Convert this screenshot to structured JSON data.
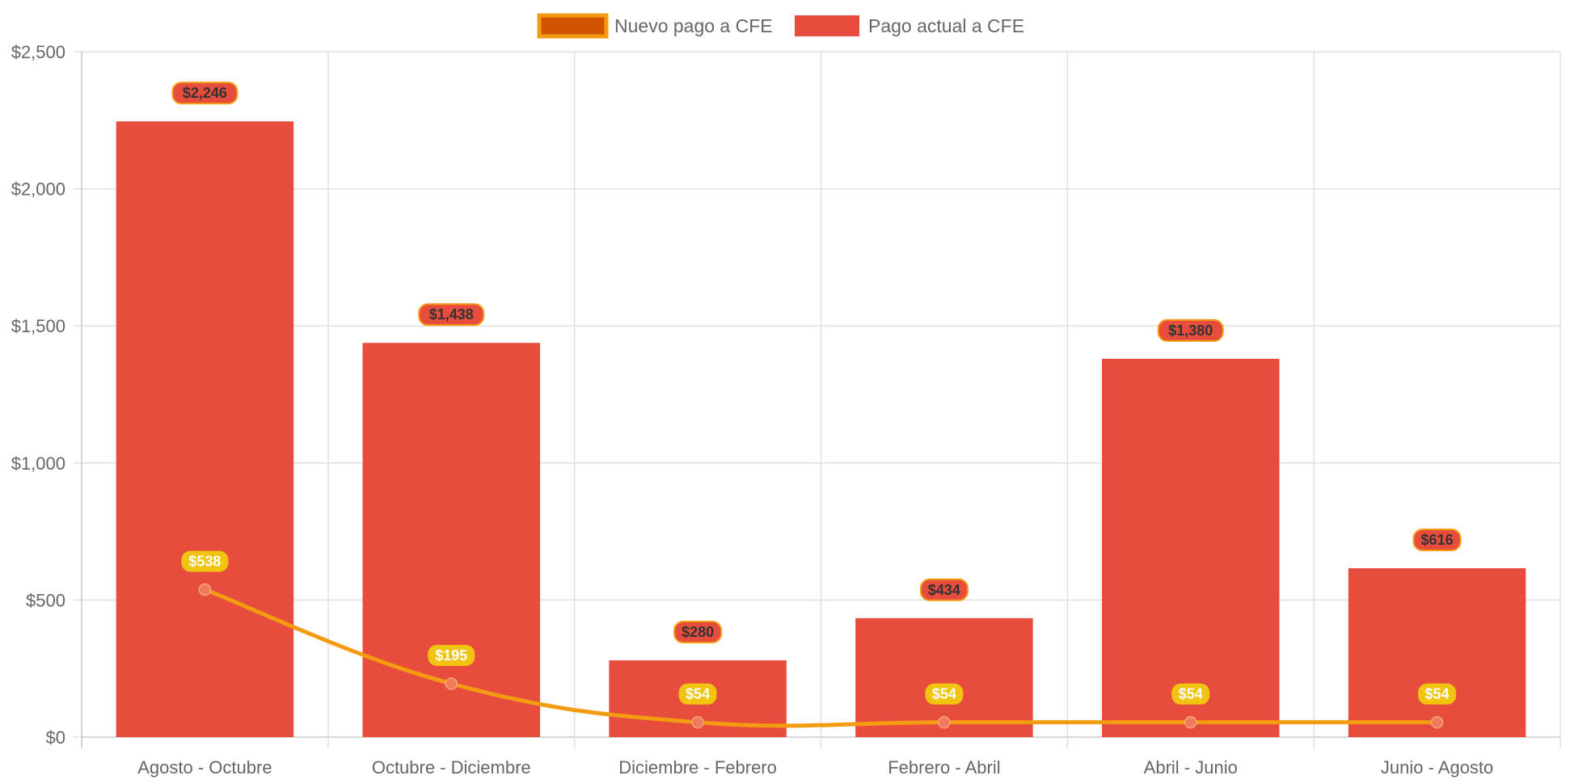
{
  "chart_data": {
    "type": "bar",
    "categories": [
      "Agosto - Octubre",
      "Octubre - Diciembre",
      "Diciembre - Febrero",
      "Febrero - Abril",
      "Abril - Junio",
      "Junio - Agosto"
    ],
    "series": [
      {
        "name": "Nuevo pago a CFE",
        "type": "line",
        "values": [
          538,
          195,
          54,
          54,
          54,
          54
        ],
        "labels": [
          "$538",
          "$195",
          "$54",
          "$54",
          "$54",
          "$54"
        ],
        "color": "#f39c12",
        "point_color": "#f07a5a",
        "label_bg": "#f1c40f",
        "label_text_color": "#ffffff",
        "legend_fill": "#d35400",
        "legend_border": "#f39c12"
      },
      {
        "name": "Pago actual a CFE",
        "type": "bar",
        "values": [
          2246,
          1438,
          280,
          434,
          1380,
          616
        ],
        "labels": [
          "$2,246",
          "$1,438",
          "$280",
          "$434",
          "$1,380",
          "$616"
        ],
        "color": "#e74c3c",
        "label_bg": "#e74c3c",
        "label_border": "#f39c12",
        "label_text_color": "#333333"
      }
    ],
    "y_ticks": [
      "$0",
      "$500",
      "$1,000",
      "$1,500",
      "$2,000",
      "$2,500"
    ],
    "ylim": [
      0,
      2500
    ],
    "grid": true,
    "legend": "top-center",
    "title": "",
    "xlabel": "",
    "ylabel": ""
  }
}
